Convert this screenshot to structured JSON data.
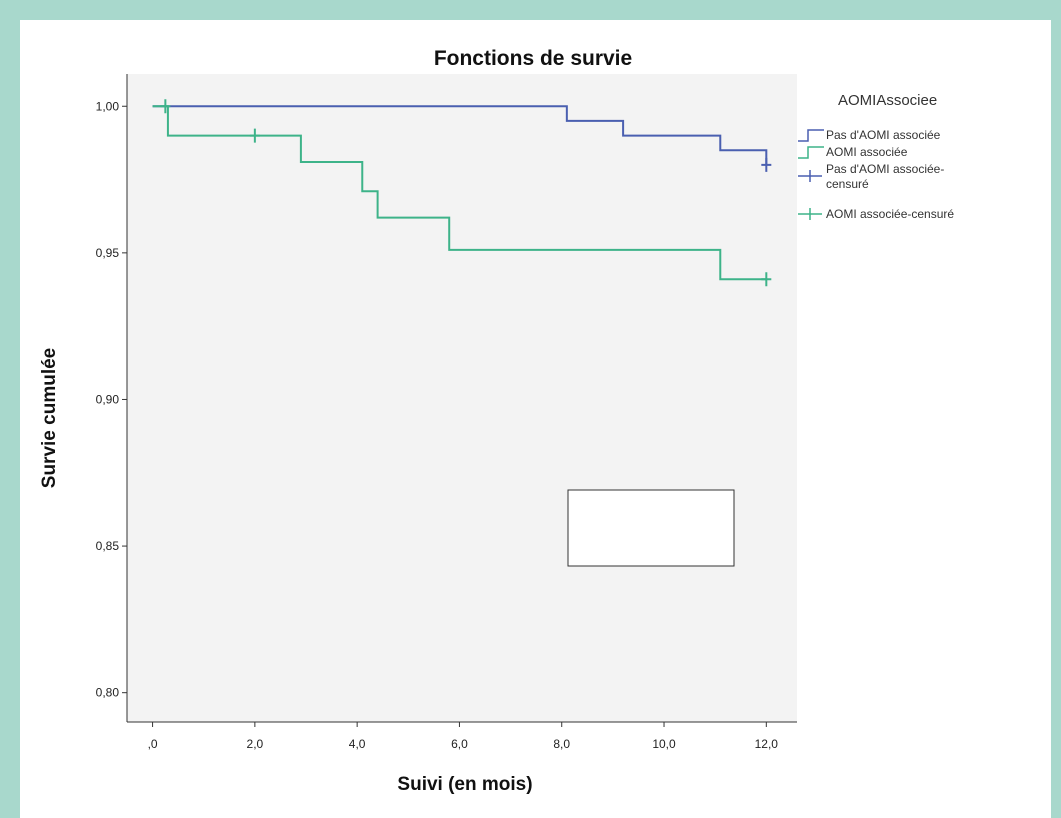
{
  "chart_data": {
    "type": "line",
    "title": "Fonctions de survie",
    "xlabel": "Suivi (en mois)",
    "ylabel": "Survie cumulée",
    "xlim": [
      -0.5,
      12.6
    ],
    "ylim": [
      0.79,
      1.011
    ],
    "xticks": [
      0,
      2,
      4,
      6,
      8,
      10,
      12
    ],
    "xtick_labels": [
      ",0",
      "2,0",
      "4,0",
      "6,0",
      "8,0",
      "10,0",
      "12,0"
    ],
    "yticks": [
      0.8,
      0.85,
      0.9,
      0.95,
      1.0
    ],
    "ytick_labels": [
      "0,80",
      "0,85",
      "0,90",
      "0,95",
      "1,00"
    ],
    "grid": false,
    "legend_title": "AOMIAssociee",
    "legend_position": "right",
    "series": [
      {
        "name": "Pas d'AOMI associée",
        "color": "#4a5fb0",
        "steps": [
          [
            0,
            1.0
          ],
          [
            8.1,
            0.995
          ],
          [
            9.2,
            0.99
          ],
          [
            11.1,
            0.985
          ],
          [
            12.0,
            0.98
          ]
        ],
        "end_x": 12.0
      },
      {
        "name": "AOMI associée",
        "color": "#3db389",
        "steps": [
          [
            0,
            1.0
          ],
          [
            0.3,
            0.99
          ],
          [
            2.9,
            0.981
          ],
          [
            4.1,
            0.971
          ],
          [
            4.4,
            0.962
          ],
          [
            5.8,
            0.951
          ],
          [
            11.1,
            0.941
          ]
        ],
        "end_x": 12.0
      }
    ],
    "censored": [
      {
        "name": "Pas d'AOMI associée-censuré",
        "color": "#4a5fb0",
        "points": [
          [
            12.0,
            0.98
          ]
        ]
      },
      {
        "name": "AOMI associée-censuré",
        "color": "#3db389",
        "points": [
          [
            0.25,
            1.0
          ],
          [
            2.0,
            0.99
          ],
          [
            12.0,
            0.941
          ]
        ]
      }
    ],
    "legend_entries": [
      {
        "label": "Pas d'AOMI associée",
        "kind": "line",
        "color": "#4a5fb0"
      },
      {
        "label": "AOMI associée",
        "kind": "line",
        "color": "#3db389"
      },
      {
        "label": "Pas d'AOMI associée-censuré",
        "kind": "censor",
        "color": "#4a5fb0"
      },
      {
        "label": "AOMI associée-censuré",
        "kind": "censor",
        "color": "#3db389"
      }
    ]
  }
}
